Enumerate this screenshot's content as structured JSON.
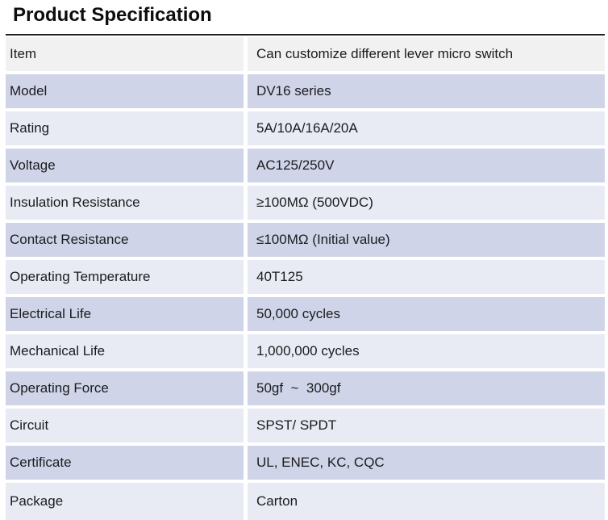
{
  "title": "Product Specification",
  "colors": {
    "row_gray": "#f1f1f2",
    "row_medium": "#cfd4e8",
    "row_light": "#e8eaf4",
    "top_border": "#222222",
    "text": "#1c1c1e"
  },
  "table": {
    "rows": [
      {
        "label": "Item",
        "value": "Can customize different lever micro switch",
        "tone": "gray"
      },
      {
        "label": "Model",
        "value": "DV16 series",
        "tone": "medium"
      },
      {
        "label": "Rating",
        "value": "5A/10A/16A/20A",
        "tone": "light"
      },
      {
        "label": "Voltage",
        "value": "AC125/250V",
        "tone": "medium"
      },
      {
        "label": "Insulation Resistance",
        "value": "≥100MΩ (500VDC)",
        "tone": "light"
      },
      {
        "label": "Contact Resistance",
        "value": "≤100MΩ (Initial value)",
        "tone": "medium"
      },
      {
        "label": "Operating Temperature",
        "value": "40T125",
        "tone": "light"
      },
      {
        "label": "Electrical Life",
        "value": "50,000 cycles",
        "tone": "medium"
      },
      {
        "label": "Mechanical Life",
        "value": "1,000,000 cycles",
        "tone": "light"
      },
      {
        "label": "Operating Force",
        "value": "50gf  ~  300gf",
        "tone": "medium"
      },
      {
        "label": "Circuit",
        "value": "SPST/ SPDT",
        "tone": "light"
      },
      {
        "label": "Certificate",
        "value": "UL, ENEC, KC, CQC",
        "tone": "medium"
      },
      {
        "label": "Package",
        "value": "Carton",
        "tone": "light"
      }
    ]
  }
}
